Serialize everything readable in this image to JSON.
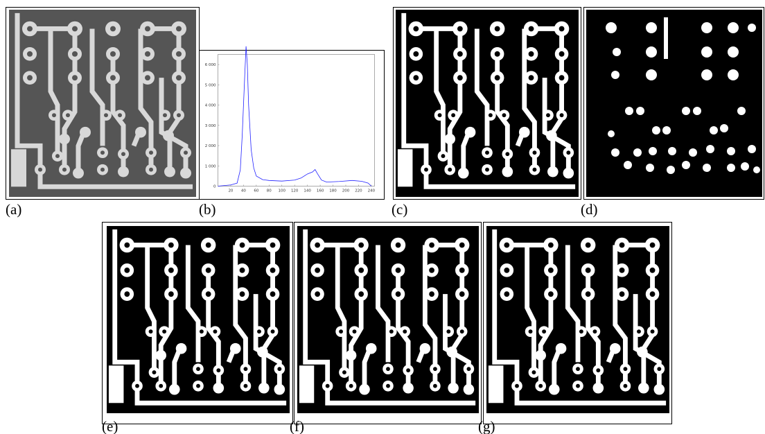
{
  "panels": [
    {
      "label": "(a)"
    },
    {
      "label": "(b)"
    },
    {
      "label": "(c)"
    },
    {
      "label": "(d)"
    },
    {
      "label": "(e)"
    },
    {
      "label": "(f)"
    },
    {
      "label": "(g)"
    }
  ],
  "chart_data": {
    "type": "line",
    "color": "#2020ff",
    "x": [
      0,
      10,
      20,
      30,
      35,
      38,
      42,
      44,
      46,
      48,
      52,
      56,
      60,
      70,
      80,
      100,
      120,
      130,
      140,
      148,
      152,
      156,
      162,
      170,
      190,
      210,
      225,
      235,
      240
    ],
    "values": [
      0,
      30,
      60,
      150,
      800,
      2500,
      5500,
      6900,
      6000,
      4000,
      1800,
      900,
      500,
      320,
      280,
      250,
      300,
      400,
      600,
      700,
      820,
      600,
      300,
      200,
      230,
      280,
      240,
      150,
      0
    ],
    "xlim": [
      0,
      245
    ],
    "ylim": [
      0,
      6500
    ],
    "xticks": [
      20,
      40,
      60,
      80,
      100,
      120,
      140,
      160,
      180,
      200,
      220,
      240
    ],
    "yticks": [
      0,
      {
        "value": 1000,
        "label": "1 000"
      },
      {
        "value": 2000,
        "label": "2 000"
      },
      {
        "value": 3000,
        "label": "3 000"
      },
      {
        "value": 4000,
        "label": "4 000"
      },
      {
        "value": 5000,
        "label": "5 000"
      },
      {
        "value": 6000,
        "label": "6 000"
      }
    ]
  }
}
